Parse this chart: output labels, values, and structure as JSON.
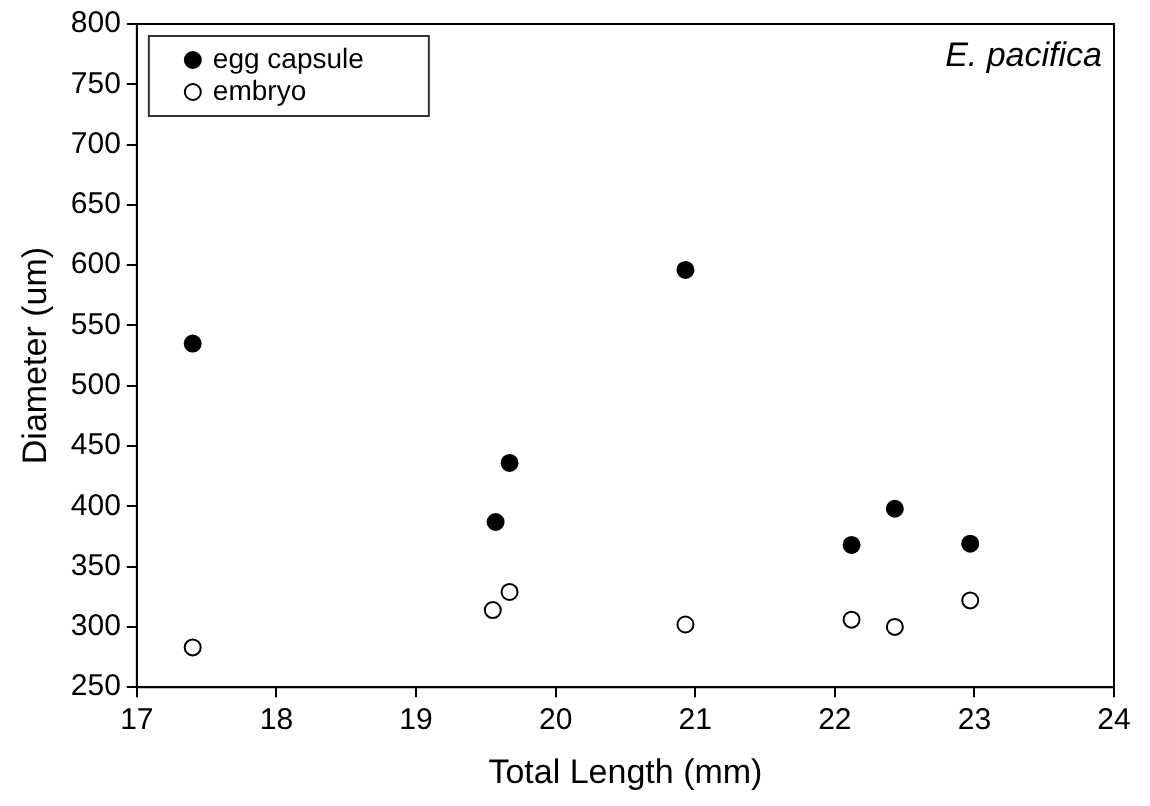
{
  "chart_data": {
    "type": "scatter",
    "xlabel": "Total Length (mm)",
    "ylabel": "Diameter (um)",
    "annotations": [
      "E. pacifica"
    ],
    "xlim": [
      17,
      24
    ],
    "xticks": [
      17,
      18,
      19,
      20,
      21,
      22,
      23,
      24
    ],
    "ylim": [
      250,
      800
    ],
    "yticks": [
      250,
      300,
      350,
      400,
      450,
      500,
      550,
      600,
      650,
      700,
      750,
      800
    ],
    "legend": "top left",
    "grid": false,
    "marker": "circle",
    "series": [
      {
        "name": "egg capsule",
        "color": "#000000",
        "x": [
          17.4,
          19.57,
          19.67,
          20.93,
          22.12,
          22.43,
          22.97
        ],
        "values": [
          535,
          387,
          436,
          596,
          368,
          398,
          369
        ]
      },
      {
        "name": "embryo",
        "color": "#ffffff",
        "x": [
          17.4,
          19.55,
          19.67,
          20.93,
          22.12,
          22.43,
          22.97
        ],
        "values": [
          283,
          314,
          329,
          302,
          306,
          300,
          322
        ]
      }
    ]
  }
}
